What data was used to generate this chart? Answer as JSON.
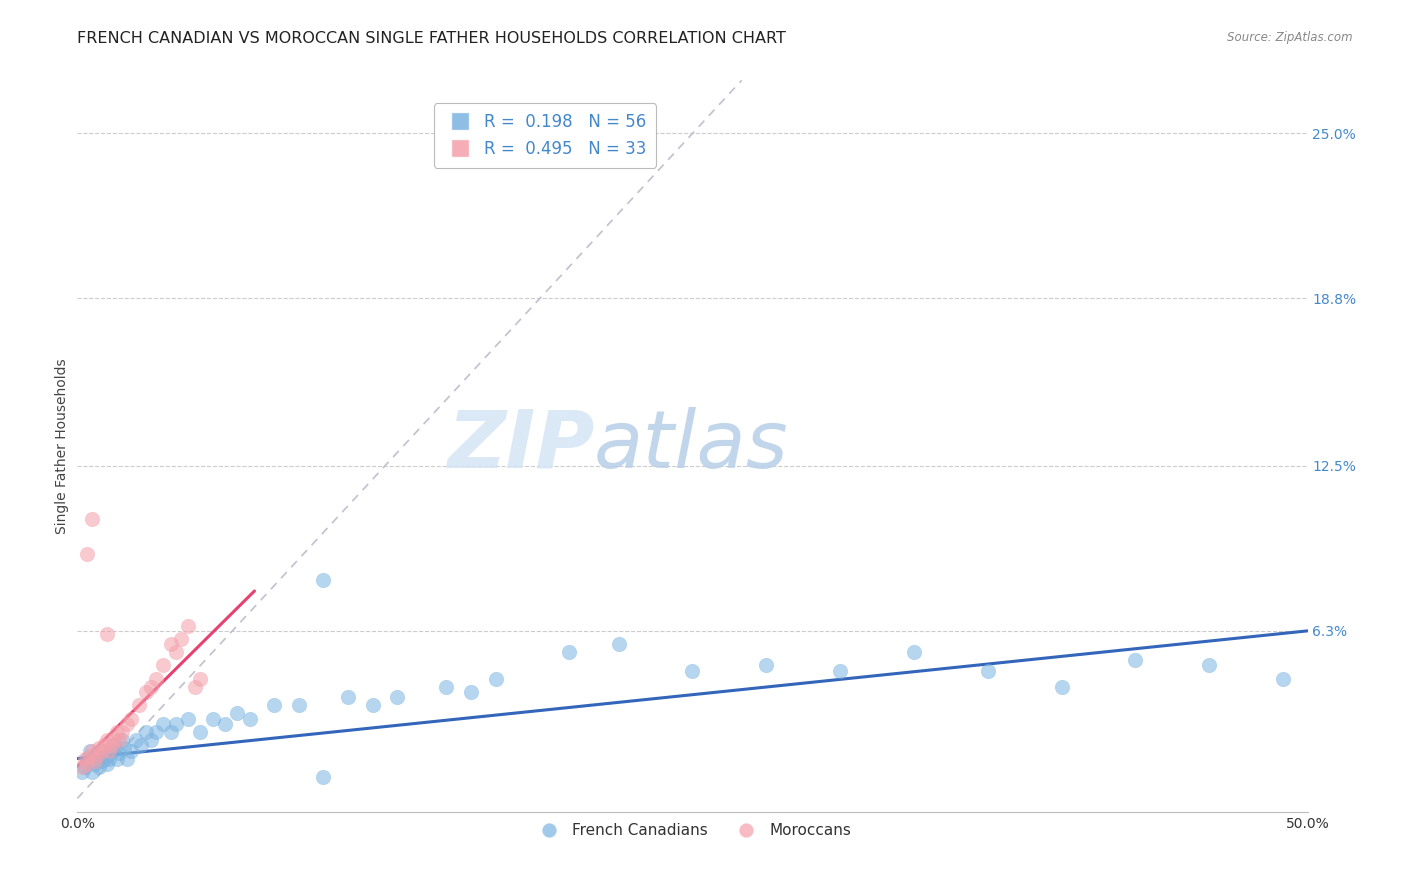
{
  "title": "FRENCH CANADIAN VS MOROCCAN SINGLE FATHER HOUSEHOLDS CORRELATION CHART",
  "source": "Source: ZipAtlas.com",
  "ylabel": "Single Father Households",
  "ytick_values": [
    0.0,
    0.063,
    0.125,
    0.188,
    0.25
  ],
  "ytick_labels": [
    "0.0%",
    "6.3%",
    "12.5%",
    "18.8%",
    "25.0%"
  ],
  "xmin": 0.0,
  "xmax": 0.5,
  "ymin": -0.005,
  "ymax": 0.27,
  "legend_blue_R": "0.198",
  "legend_blue_N": "56",
  "legend_pink_R": "0.495",
  "legend_pink_N": "33",
  "legend_label_blue": "French Canadians",
  "legend_label_pink": "Moroccans",
  "blue_color": "#7ab3e0",
  "pink_color": "#f4a0aa",
  "trendline_blue_color": "#3366bb",
  "trendline_pink_color": "#e84070",
  "diagonal_color": "#c0c0d0",
  "watermark_zip": "ZIP",
  "watermark_atlas": "atlas",
  "blue_scatter_x": [
    0.002,
    0.003,
    0.004,
    0.005,
    0.006,
    0.007,
    0.008,
    0.009,
    0.01,
    0.01,
    0.011,
    0.012,
    0.013,
    0.014,
    0.015,
    0.016,
    0.017,
    0.018,
    0.019,
    0.02,
    0.022,
    0.024,
    0.026,
    0.028,
    0.03,
    0.032,
    0.035,
    0.038,
    0.04,
    0.045,
    0.05,
    0.055,
    0.06,
    0.065,
    0.07,
    0.08,
    0.09,
    0.1,
    0.11,
    0.12,
    0.13,
    0.15,
    0.16,
    0.17,
    0.2,
    0.22,
    0.25,
    0.28,
    0.31,
    0.34,
    0.37,
    0.4,
    0.43,
    0.46,
    0.49,
    0.1
  ],
  "blue_scatter_y": [
    0.01,
    0.012,
    0.015,
    0.018,
    0.01,
    0.013,
    0.016,
    0.012,
    0.014,
    0.018,
    0.016,
    0.013,
    0.015,
    0.018,
    0.02,
    0.015,
    0.017,
    0.022,
    0.019,
    0.015,
    0.018,
    0.022,
    0.02,
    0.025,
    0.022,
    0.025,
    0.028,
    0.025,
    0.028,
    0.03,
    0.025,
    0.03,
    0.028,
    0.032,
    0.03,
    0.035,
    0.035,
    0.082,
    0.038,
    0.035,
    0.038,
    0.042,
    0.04,
    0.045,
    0.055,
    0.058,
    0.048,
    0.05,
    0.048,
    0.055,
    0.048,
    0.042,
    0.052,
    0.05,
    0.045,
    0.008
  ],
  "pink_scatter_x": [
    0.002,
    0.003,
    0.004,
    0.005,
    0.006,
    0.007,
    0.008,
    0.009,
    0.01,
    0.011,
    0.012,
    0.013,
    0.014,
    0.015,
    0.016,
    0.017,
    0.018,
    0.02,
    0.022,
    0.025,
    0.028,
    0.03,
    0.032,
    0.035,
    0.038,
    0.04,
    0.042,
    0.045,
    0.048,
    0.05,
    0.004,
    0.006,
    0.012
  ],
  "pink_scatter_y": [
    0.012,
    0.015,
    0.013,
    0.016,
    0.018,
    0.014,
    0.016,
    0.019,
    0.018,
    0.02,
    0.022,
    0.018,
    0.02,
    0.022,
    0.025,
    0.022,
    0.025,
    0.028,
    0.03,
    0.035,
    0.04,
    0.042,
    0.045,
    0.05,
    0.058,
    0.055,
    0.06,
    0.065,
    0.042,
    0.045,
    0.092,
    0.105,
    0.062
  ],
  "blue_trend_x": [
    0.0,
    0.5
  ],
  "blue_trend_y": [
    0.015,
    0.063
  ],
  "pink_trend_x": [
    0.0,
    0.072
  ],
  "pink_trend_y": [
    0.012,
    0.078
  ],
  "grid_color": "#cccccc",
  "background_color": "#ffffff",
  "title_fontsize": 11.5,
  "tick_label_fontsize": 10,
  "axis_label_fontsize": 10
}
